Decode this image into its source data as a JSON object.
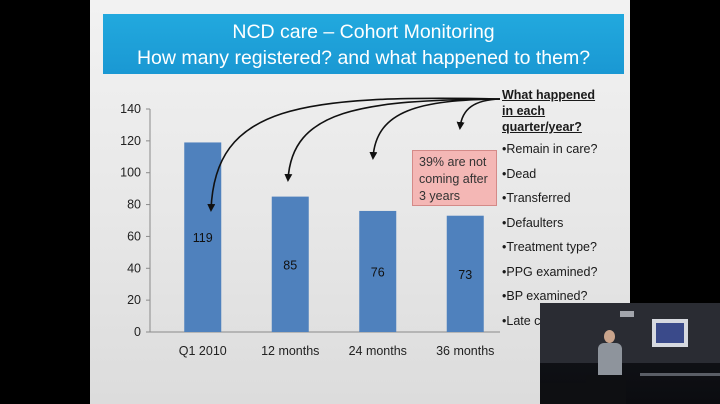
{
  "slide": {
    "title_line1": "NCD care – Cohort Monitoring",
    "title_line2": "How many registered? and  what happened to them?"
  },
  "chart_data": {
    "type": "bar",
    "categories": [
      "Q1 2010",
      "12 months",
      "24 months",
      "36 months"
    ],
    "values": [
      119,
      85,
      76,
      73
    ],
    "data_labels": [
      "119",
      "85",
      "76",
      "73"
    ],
    "ylim": [
      0,
      140
    ],
    "yticks": [
      0,
      20,
      40,
      60,
      80,
      100,
      120,
      140
    ],
    "bar_color": "#4f81bd",
    "grid": false
  },
  "callout": {
    "line1": "39%  are not",
    "line2": "coming after",
    "line3": " 3 years",
    "color": "#f4b7b5"
  },
  "questions": {
    "heading_line1": "What happened",
    "heading_line2": "in each",
    "heading_line3": "quarter/year?",
    "items": [
      "•Remain in care?",
      "•Dead",
      "•Transferred",
      "•Defaulters",
      "•Treatment type?",
      "•PPG examined?",
      "•BP examined?",
      "•Late c"
    ]
  },
  "colors": {
    "title_band": "#1fa3dc",
    "arrows": "#111111"
  }
}
